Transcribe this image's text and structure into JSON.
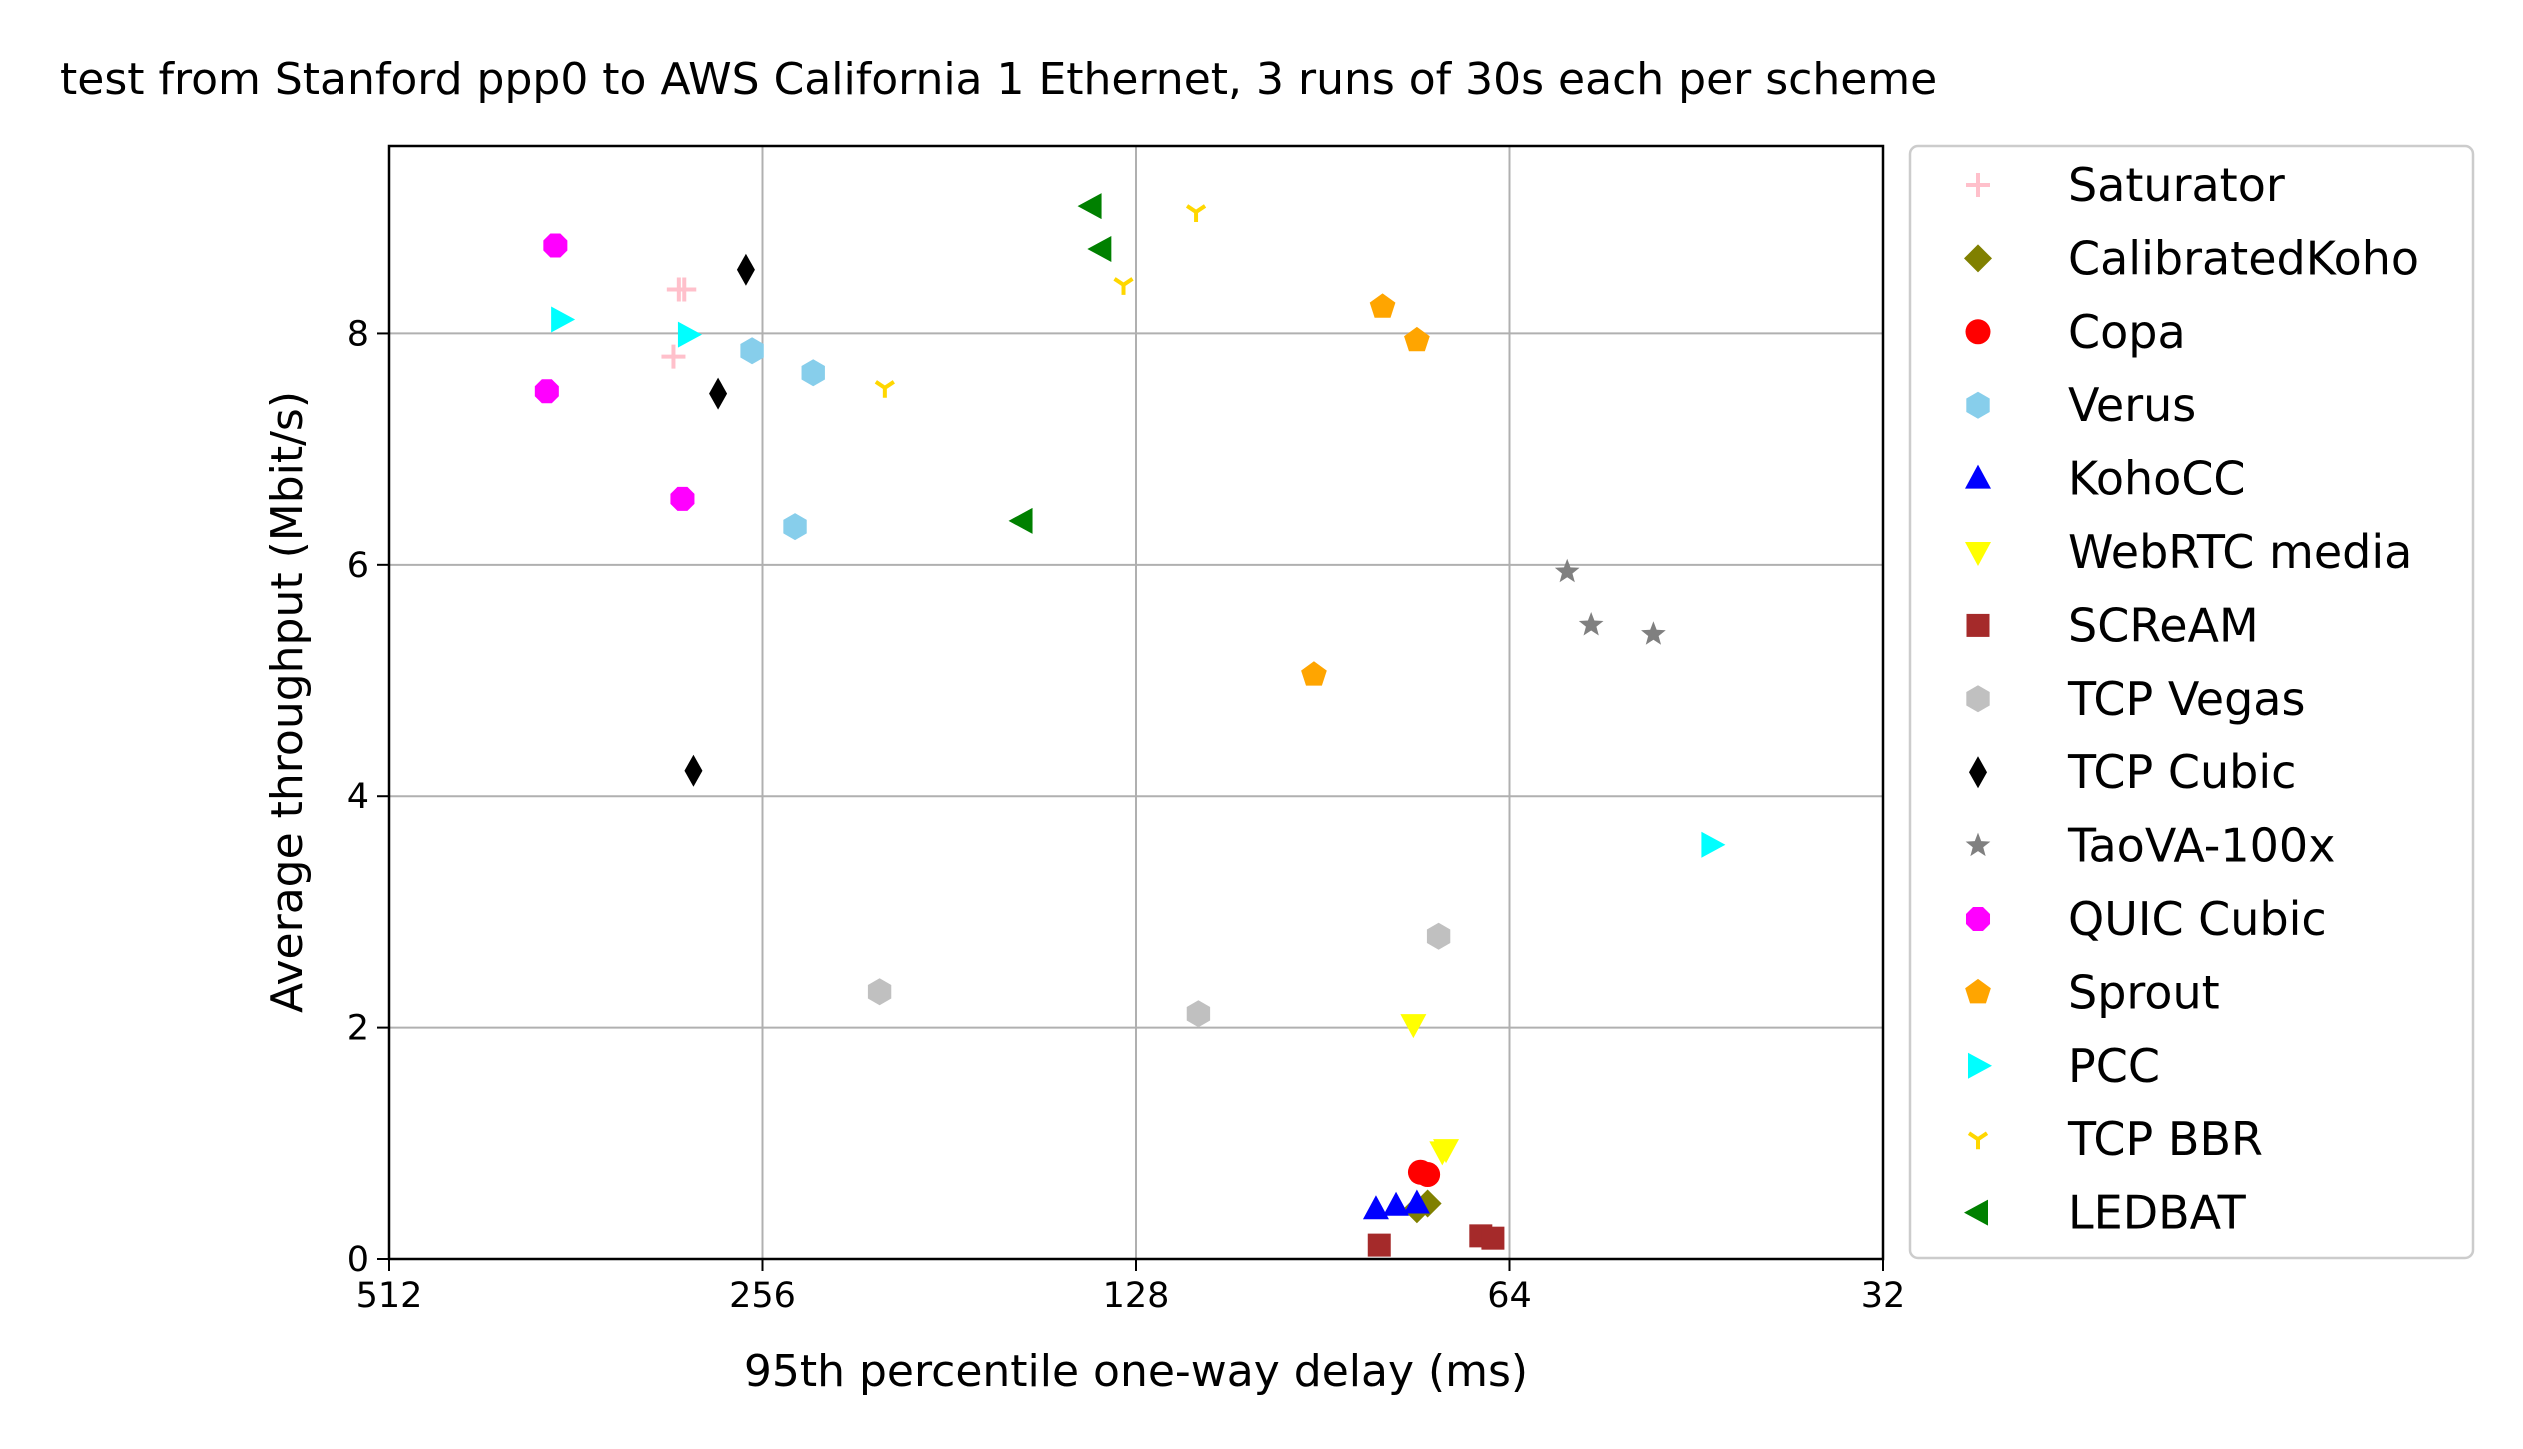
{
  "chart_data": {
    "type": "scatter",
    "title": "test from Stanford ppp0 to AWS California 1 Ethernet, 3 runs of 30s each per scheme",
    "xlabel": "95th percentile one-way delay (ms)",
    "ylabel": "Average throughput (Mbit/s)",
    "x_scale": "log2",
    "x_inverted": true,
    "xlim": [
      512,
      32
    ],
    "ylim": [
      0,
      9.62
    ],
    "x_ticks": [
      512,
      256,
      128,
      64,
      32
    ],
    "x_tick_labels": [
      "512",
      "256",
      "128",
      "64",
      "32"
    ],
    "y_ticks": [
      0,
      2,
      4,
      6,
      8
    ],
    "y_tick_labels": [
      "0",
      "2",
      "4",
      "6",
      "8"
    ],
    "grid": true,
    "legend_position": "outside-right",
    "series": [
      {
        "name": "Saturator",
        "marker": "plus",
        "color": "#ffc0cb",
        "points": [
          [
            299,
            8.38
          ],
          [
            296,
            8.38
          ],
          [
            302,
            7.8
          ]
        ]
      },
      {
        "name": "CalibratedKoho",
        "marker": "diamond",
        "color": "#808000",
        "points": [
          [
            74.5,
            0.48
          ],
          [
            76,
            0.43
          ]
        ]
      },
      {
        "name": "Copa",
        "marker": "circle",
        "color": "#ff0000",
        "points": [
          [
            75.5,
            0.75
          ],
          [
            74.5,
            0.73
          ]
        ]
      },
      {
        "name": "Verus",
        "marker": "hexagon",
        "color": "#87ceeb",
        "points": [
          [
            261,
            7.85
          ],
          [
            233,
            7.66
          ],
          [
            241,
            6.33
          ]
        ]
      },
      {
        "name": "KohoCC",
        "marker": "triangle-up",
        "color": "#0000ff",
        "points": [
          [
            82,
            0.43
          ],
          [
            79,
            0.46
          ],
          [
            76,
            0.48
          ]
        ]
      },
      {
        "name": "WebRTC media",
        "marker": "triangle-down",
        "color": "#ffff00",
        "points": [
          [
            76.5,
            2.03
          ],
          [
            72.5,
            0.93
          ],
          [
            72,
            0.95
          ]
        ]
      },
      {
        "name": "SCReAM",
        "marker": "square",
        "color": "#a52a2a",
        "points": [
          [
            81.5,
            0.12
          ],
          [
            67.5,
            0.2
          ],
          [
            66,
            0.18
          ]
        ]
      },
      {
        "name": "TCP Vegas",
        "marker": "hexagon",
        "color": "#c0c0c0",
        "points": [
          [
            206,
            2.31
          ],
          [
            114,
            2.12
          ],
          [
            73,
            2.79
          ]
        ]
      },
      {
        "name": "TCP Cubic",
        "marker": "thin-diamond",
        "color": "#000000",
        "points": [
          [
            264,
            8.55
          ],
          [
            278,
            7.48
          ],
          [
            291,
            4.22
          ]
        ]
      },
      {
        "name": "TaoVA-100x",
        "marker": "star",
        "color": "#808080",
        "points": [
          [
            57.5,
            5.94
          ],
          [
            55,
            5.48
          ],
          [
            49,
            5.4
          ]
        ]
      },
      {
        "name": "QUIC Cubic",
        "marker": "octagon",
        "color": "#ff00ff",
        "points": [
          [
            376,
            8.76
          ],
          [
            382,
            7.5
          ],
          [
            297,
            6.57
          ]
        ]
      },
      {
        "name": "Sprout",
        "marker": "pentagon",
        "color": "#ffa500",
        "points": [
          [
            81,
            8.23
          ],
          [
            76,
            7.94
          ],
          [
            92,
            5.05
          ]
        ]
      },
      {
        "name": "PCC",
        "marker": "triangle-right",
        "color": "#00ffff",
        "points": [
          [
            372,
            8.12
          ],
          [
            294,
            7.99
          ],
          [
            44,
            3.58
          ]
        ]
      },
      {
        "name": "TCP BBR",
        "marker": "tri-down",
        "color": "#ffd700",
        "points": [
          [
            114.5,
            9.05
          ],
          [
            131,
            8.42
          ],
          [
            204,
            7.53
          ]
        ]
      },
      {
        "name": "LEDBAT",
        "marker": "triangle-left",
        "color": "#008000",
        "points": [
          [
            139,
            9.1
          ],
          [
            136.5,
            8.73
          ],
          [
            158,
            6.38
          ]
        ]
      }
    ]
  }
}
